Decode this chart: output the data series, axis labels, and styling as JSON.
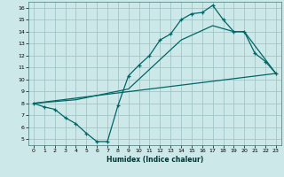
{
  "xlabel": "Humidex (Indice chaleur)",
  "ylabel": "",
  "bg_color": "#cce8e8",
  "grid_color": "#9bbfbf",
  "line_color": "#006666",
  "xlim": [
    -0.5,
    23.5
  ],
  "ylim": [
    4.5,
    16.5
  ],
  "xticks": [
    0,
    1,
    2,
    3,
    4,
    5,
    6,
    7,
    8,
    9,
    10,
    11,
    12,
    13,
    14,
    15,
    16,
    17,
    18,
    19,
    20,
    21,
    22,
    23
  ],
  "yticks": [
    5,
    6,
    7,
    8,
    9,
    10,
    11,
    12,
    13,
    14,
    15,
    16
  ],
  "line1_x": [
    0,
    1,
    2,
    3,
    4,
    5,
    6,
    7,
    8,
    9,
    10,
    11,
    12,
    13,
    14,
    15,
    16,
    17,
    18,
    19,
    20,
    21,
    22,
    23
  ],
  "line1_y": [
    8.0,
    7.7,
    7.5,
    6.8,
    6.3,
    5.5,
    4.8,
    4.8,
    7.8,
    10.3,
    11.2,
    12.0,
    13.3,
    13.8,
    15.0,
    15.5,
    15.6,
    16.2,
    15.0,
    14.0,
    14.0,
    12.2,
    11.5,
    10.5
  ],
  "line2_x": [
    0,
    23
  ],
  "line2_y": [
    8.0,
    10.5
  ],
  "line3_x": [
    0,
    4,
    9,
    14,
    17,
    19,
    20,
    23
  ],
  "line3_y": [
    8.0,
    8.3,
    9.2,
    13.3,
    14.5,
    14.0,
    14.0,
    10.5
  ]
}
